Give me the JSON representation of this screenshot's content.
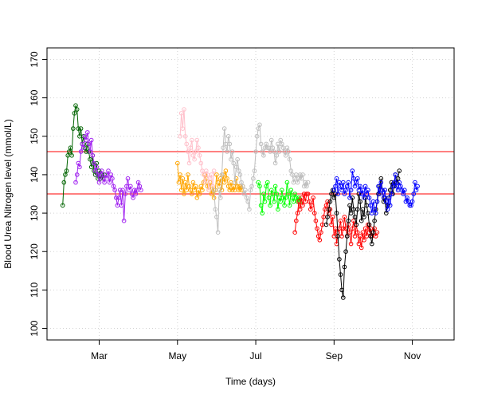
{
  "chart_data": {
    "type": "line",
    "title": "",
    "xlabel": "Time (days)",
    "ylabel": "Blood Urea Nitrogen level (mmol/L)",
    "xlim_days": [
      -6,
      150
    ],
    "ylim": [
      97,
      173
    ],
    "x_ticks": [
      {
        "label": "Mar",
        "day": 14
      },
      {
        "label": "May",
        "day": 44
      },
      {
        "label": "Jul",
        "day": 74
      },
      {
        "label": "Sep",
        "day": 104
      },
      {
        "label": "Nov",
        "day": 134
      }
    ],
    "y_ticks": [
      100,
      110,
      120,
      130,
      140,
      150,
      160,
      170
    ],
    "grid": true,
    "reference_lines": [
      {
        "value": 146,
        "color": "#ff0000"
      },
      {
        "value": 135,
        "color": "#ff0000"
      }
    ],
    "series": [
      {
        "color": "#006400",
        "x": [
          0,
          0.5,
          1,
          1.5,
          2,
          2.5,
          3,
          3.5,
          4,
          4.5,
          5,
          5.5,
          6,
          6.5,
          7,
          7.5,
          8,
          8.5,
          9,
          9.5,
          10,
          10.5,
          11,
          11.5,
          12,
          12.5,
          13,
          13.5,
          14,
          14.5,
          15,
          15.5,
          16
        ],
        "y": [
          132,
          138,
          140,
          141,
          145,
          146,
          147,
          145,
          152,
          156,
          158,
          157,
          152,
          150,
          152,
          148,
          150,
          147,
          146,
          148,
          146,
          144,
          142,
          145,
          141,
          140,
          143,
          139,
          141,
          139,
          140,
          139,
          140
        ]
      },
      {
        "color": "#a020f0",
        "x": [
          5,
          5.5,
          6,
          6.5,
          7,
          7.5,
          8,
          8.5,
          9,
          9.5,
          10,
          10.5,
          11,
          11.5,
          12,
          12.5,
          13,
          13.5,
          14,
          14.5,
          15,
          15.5,
          16,
          16.5,
          17,
          17.5,
          18,
          18.5,
          19,
          19.5,
          20,
          20.5,
          21,
          21.5,
          22,
          22.5,
          23,
          23.5,
          24,
          24.5,
          25,
          25.5,
          26,
          26.5,
          27,
          27.5,
          28,
          28.5,
          29,
          29.5,
          30
        ],
        "y": [
          138,
          140,
          143,
          142,
          146,
          148,
          147,
          150,
          149,
          151,
          148,
          146,
          149,
          145,
          143,
          141,
          142,
          140,
          138,
          140,
          141,
          139,
          138,
          140,
          139,
          141,
          138,
          140,
          139,
          137,
          136,
          134,
          132,
          134,
          136,
          132,
          136,
          128,
          135,
          137,
          139,
          136,
          137,
          135,
          134,
          136,
          135,
          136,
          138,
          137,
          136
        ]
      },
      {
        "color": "#ffa500",
        "x": [
          44,
          44.5,
          45,
          45.5,
          46,
          46.5,
          47,
          47.5,
          48,
          48.5,
          49,
          49.5,
          50,
          50.5,
          51,
          51.5,
          52,
          52.5,
          53,
          53.5,
          54,
          54.5,
          55,
          55.5,
          56,
          56.5,
          57,
          57.5,
          58,
          58.5,
          59,
          59.5,
          60,
          60.5,
          61,
          61.5,
          62,
          62.5,
          63,
          63.5,
          64,
          64.5,
          65,
          65.5,
          66,
          66.5,
          67,
          67.5,
          68,
          68.5,
          69
        ],
        "y": [
          143,
          138,
          140,
          136,
          139,
          135,
          138,
          136,
          140,
          137,
          136,
          135,
          138,
          136,
          137,
          134,
          136,
          135,
          137,
          136,
          138,
          140,
          139,
          137,
          136,
          138,
          135,
          137,
          134,
          136,
          140,
          138,
          137,
          139,
          136,
          140,
          138,
          141,
          139,
          137,
          136,
          138,
          136,
          137,
          136,
          139,
          137,
          136,
          137,
          136,
          137
        ]
      },
      {
        "color": "#ffc0cb",
        "x": [
          45,
          45.5,
          46,
          46.5,
          47,
          47.5,
          48,
          48.5,
          49,
          49.5,
          50,
          50.5,
          51,
          51.5,
          52,
          52.5,
          53,
          53.5,
          54,
          54.5,
          55,
          55.5,
          56,
          56.5,
          57,
          57.5,
          58
        ],
        "y": [
          150,
          156,
          152,
          157,
          150,
          148,
          146,
          143,
          147,
          149,
          145,
          144,
          146,
          149,
          147,
          145,
          143,
          141,
          140,
          138,
          141,
          140,
          136,
          139,
          140,
          137,
          141
        ]
      },
      {
        "color": "#bebebe",
        "x": [
          58,
          58.5,
          59,
          59.5,
          60,
          60.5,
          61,
          61.5,
          62,
          62.5,
          63,
          63.5,
          64,
          64.5,
          65,
          65.5,
          66,
          66.5,
          67,
          67.5,
          68,
          68.5,
          69,
          69.5,
          70,
          70.5,
          71,
          71.5,
          72,
          72.5,
          73,
          73.5,
          74,
          74.5,
          75,
          75.5,
          76,
          76.5,
          77,
          77.5,
          78,
          78.5,
          79,
          79.5,
          80,
          80.5,
          81,
          81.5,
          82,
          82.5,
          83,
          83.5,
          84,
          84.5,
          85,
          85.5,
          86,
          86.5,
          87,
          87.5,
          88,
          88.5,
          89,
          89.5,
          90,
          90.5,
          91,
          91.5,
          92,
          92.5,
          93,
          93.5,
          94
        ],
        "y": [
          136,
          131,
          129,
          125,
          136,
          134,
          140,
          147,
          152,
          148,
          146,
          150,
          148,
          144,
          146,
          143,
          138,
          142,
          144,
          141,
          140,
          138,
          137,
          135,
          136,
          134,
          133,
          131,
          136,
          137,
          139,
          141,
          146,
          150,
          152,
          153,
          148,
          146,
          145,
          147,
          148,
          147,
          147,
          146,
          149,
          147,
          146,
          143,
          145,
          148,
          146,
          149,
          148,
          147,
          146,
          145,
          147,
          146,
          144,
          141,
          140,
          138,
          139,
          140,
          138,
          139,
          140,
          139,
          140,
          137,
          138,
          137,
          138
        ]
      },
      {
        "color": "#00ff00",
        "x": [
          75,
          75.5,
          76,
          76.5,
          77,
          77.5,
          78,
          78.5,
          79,
          79.5,
          80,
          80.5,
          81,
          81.5,
          82,
          82.5,
          83,
          83.5,
          84,
          84.5,
          85,
          85.5,
          86,
          86.5,
          87,
          87.5,
          88,
          88.5,
          89,
          89.5,
          90,
          90.5,
          91
        ],
        "y": [
          138,
          137,
          132,
          130,
          135,
          133,
          137,
          138,
          134,
          132,
          136,
          135,
          133,
          137,
          135,
          131,
          134,
          133,
          136,
          134,
          132,
          134,
          138,
          135,
          132,
          136,
          134,
          133,
          135,
          134,
          133,
          134,
          133
        ]
      },
      {
        "color": "#ff0000",
        "x": [
          89,
          89.5,
          90,
          90.5,
          91,
          91.5,
          92,
          92.5,
          93,
          93.5,
          94,
          94.5,
          95,
          95.5,
          96,
          96.5,
          97,
          97.5,
          98,
          98.5,
          99,
          99.5,
          100,
          100.5,
          101,
          101.5,
          102,
          102.5,
          103,
          103.5,
          104,
          104.5,
          105,
          105.5,
          106,
          106.5,
          107,
          107.5,
          108,
          108.5,
          109,
          109.5,
          110,
          110.5,
          111,
          111.5,
          112,
          112.5,
          113,
          113.5,
          114,
          114.5,
          115,
          115.5,
          116,
          116.5,
          117,
          117.5,
          118,
          118.5,
          119,
          119.5,
          120,
          120.5
        ],
        "y": [
          125,
          128,
          130,
          133,
          131,
          134,
          132,
          135,
          133,
          135,
          135,
          133,
          131,
          132,
          134,
          130,
          128,
          126,
          124,
          123,
          125,
          127,
          129,
          131,
          132,
          133,
          130,
          131,
          127,
          129,
          124,
          126,
          122,
          125,
          126,
          128,
          124,
          126,
          129,
          126,
          124,
          127,
          125,
          122,
          126,
          128,
          124,
          127,
          125,
          122,
          124,
          121,
          125,
          123,
          126,
          124,
          127,
          125,
          126,
          124,
          125,
          126,
          124,
          125
        ]
      },
      {
        "color": "#000000",
        "x": [
          101,
          101.5,
          102,
          102.5,
          103,
          103.5,
          104,
          104.5,
          105,
          105.5,
          106,
          106.5,
          107,
          107.5,
          108,
          108.5,
          109,
          109.5,
          110,
          110.5,
          111,
          111.5,
          112,
          112.5,
          113,
          113.5,
          114,
          114.5,
          115,
          115.5,
          116,
          116.5,
          117,
          117.5,
          118,
          118.5,
          119,
          119.5,
          120,
          120.5,
          121,
          121.5,
          122,
          122.5,
          123,
          123.5,
          124,
          124.5,
          125,
          125.5,
          126,
          126.5,
          127,
          127.5,
          128,
          128.5,
          129
        ],
        "y": [
          127,
          129,
          131,
          133,
          135,
          136,
          134,
          135,
          130,
          124,
          118,
          114,
          110,
          108,
          116,
          120,
          124,
          128,
          132,
          130,
          134,
          131,
          129,
          127,
          131,
          135,
          133,
          128,
          131,
          129,
          134,
          132,
          130,
          127,
          124,
          122,
          125,
          128,
          131,
          133,
          135,
          137,
          139,
          136,
          133,
          134,
          130,
          132,
          134,
          136,
          138,
          135,
          137,
          140,
          138,
          139,
          141
        ]
      },
      {
        "color": "#0000ff",
        "x": [
          104,
          104.5,
          105,
          105.5,
          106,
          106.5,
          107,
          107.5,
          108,
          108.5,
          109,
          109.5,
          110,
          110.5,
          111,
          111.5,
          112,
          112.5,
          113,
          113.5,
          114,
          114.5,
          115,
          115.5,
          116,
          116.5,
          117,
          117.5,
          118,
          118.5,
          119,
          119.5,
          120,
          120.5,
          121,
          121.5,
          122,
          122.5,
          123,
          123.5,
          124,
          124.5,
          125,
          125.5,
          126,
          126.5,
          127,
          127.5,
          128,
          128.5,
          129,
          129.5,
          130,
          130.5,
          131,
          131.5,
          132,
          132.5,
          133,
          133.5,
          134,
          134.5,
          135,
          135.5,
          136
        ],
        "y": [
          136,
          137,
          139,
          135,
          138,
          137,
          136,
          138,
          135,
          136,
          137,
          138,
          134,
          136,
          141,
          139,
          137,
          138,
          139,
          136,
          137,
          135,
          136,
          134,
          137,
          135,
          136,
          134,
          132,
          130,
          133,
          131,
          130,
          133,
          137,
          135,
          138,
          136,
          134,
          136,
          133,
          131,
          134,
          132,
          135,
          137,
          138,
          140,
          137,
          136,
          138,
          137,
          136,
          135,
          136,
          133,
          134,
          133,
          132,
          132,
          133,
          135,
          138,
          136,
          137
        ]
      }
    ]
  }
}
